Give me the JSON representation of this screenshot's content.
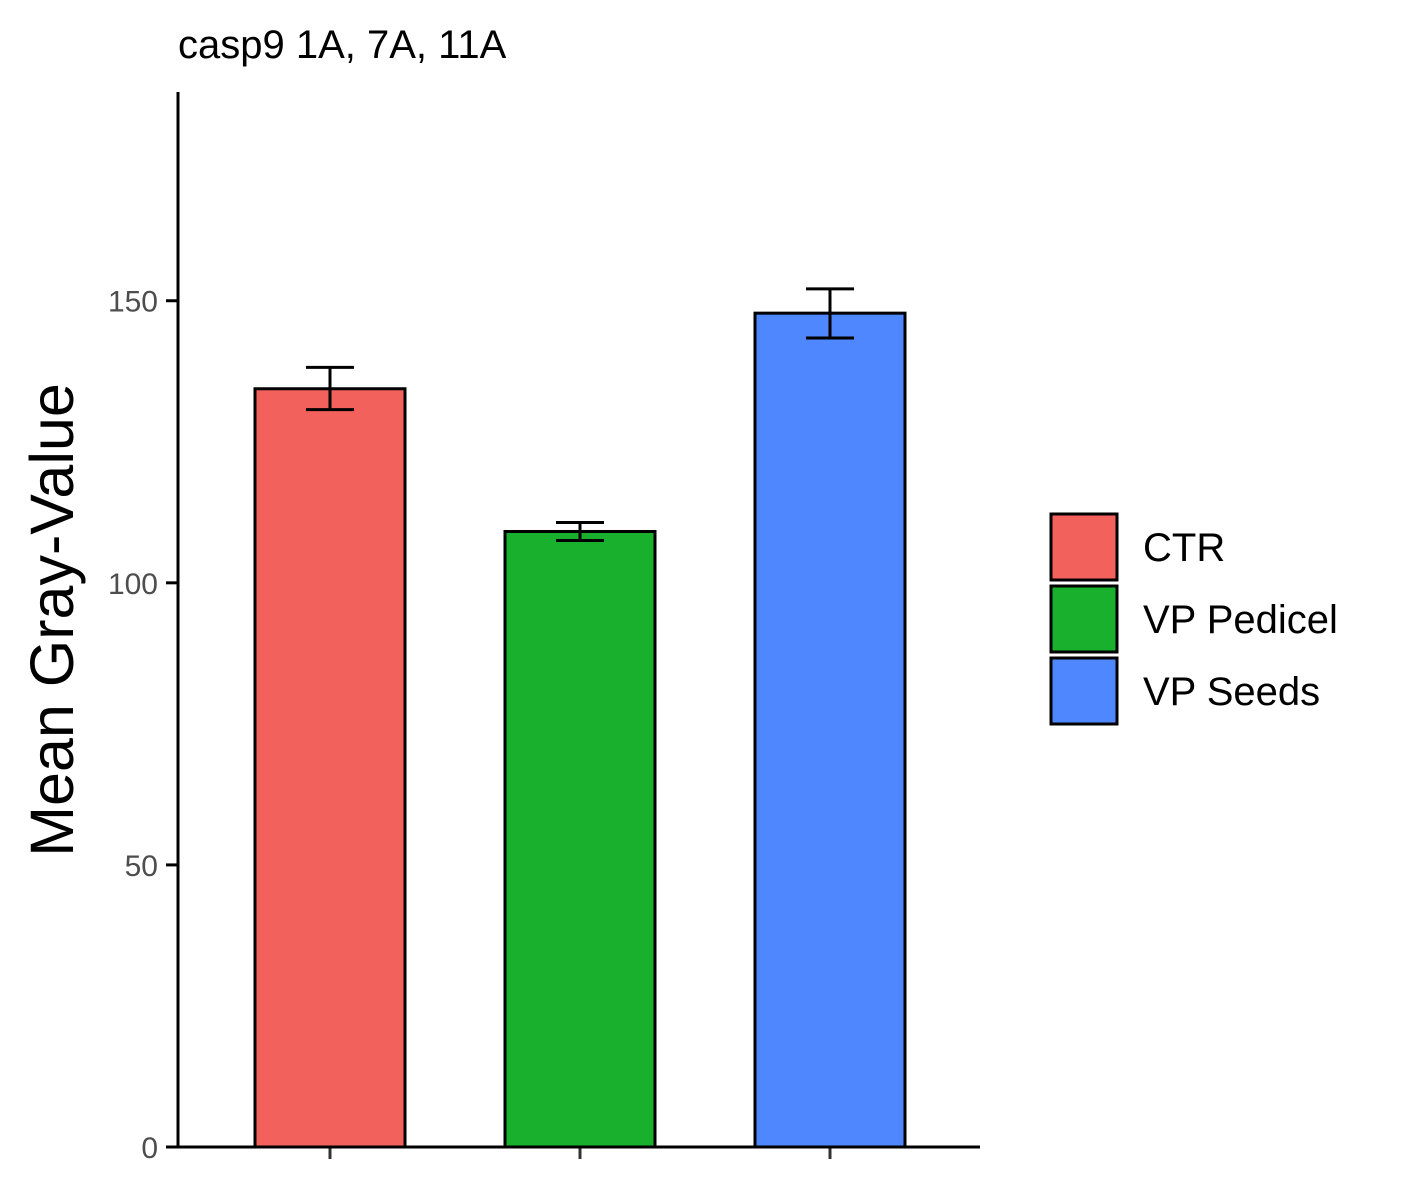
{
  "chart_data": {
    "type": "bar",
    "title": "casp9 1A, 7A, 11A",
    "xlabel": "",
    "ylabel": "Mean Gray-Value",
    "ylim": [
      0,
      187
    ],
    "yticks": [
      "0",
      "50",
      "100",
      "150"
    ],
    "categories": [
      "CTR",
      "VP Pedicel",
      "VP Seeds"
    ],
    "values": [
      134.4,
      109.1,
      147.8
    ],
    "error_low": [
      130.7,
      107.5,
      143.4
    ],
    "error_high": [
      138.2,
      110.7,
      152.1
    ],
    "colors": [
      "#F2615C",
      "#19B02D",
      "#4F87FE"
    ],
    "legend": {
      "position": "right",
      "entries": [
        "CTR",
        "VP Pedicel",
        "VP Seeds"
      ]
    },
    "grid": false
  }
}
